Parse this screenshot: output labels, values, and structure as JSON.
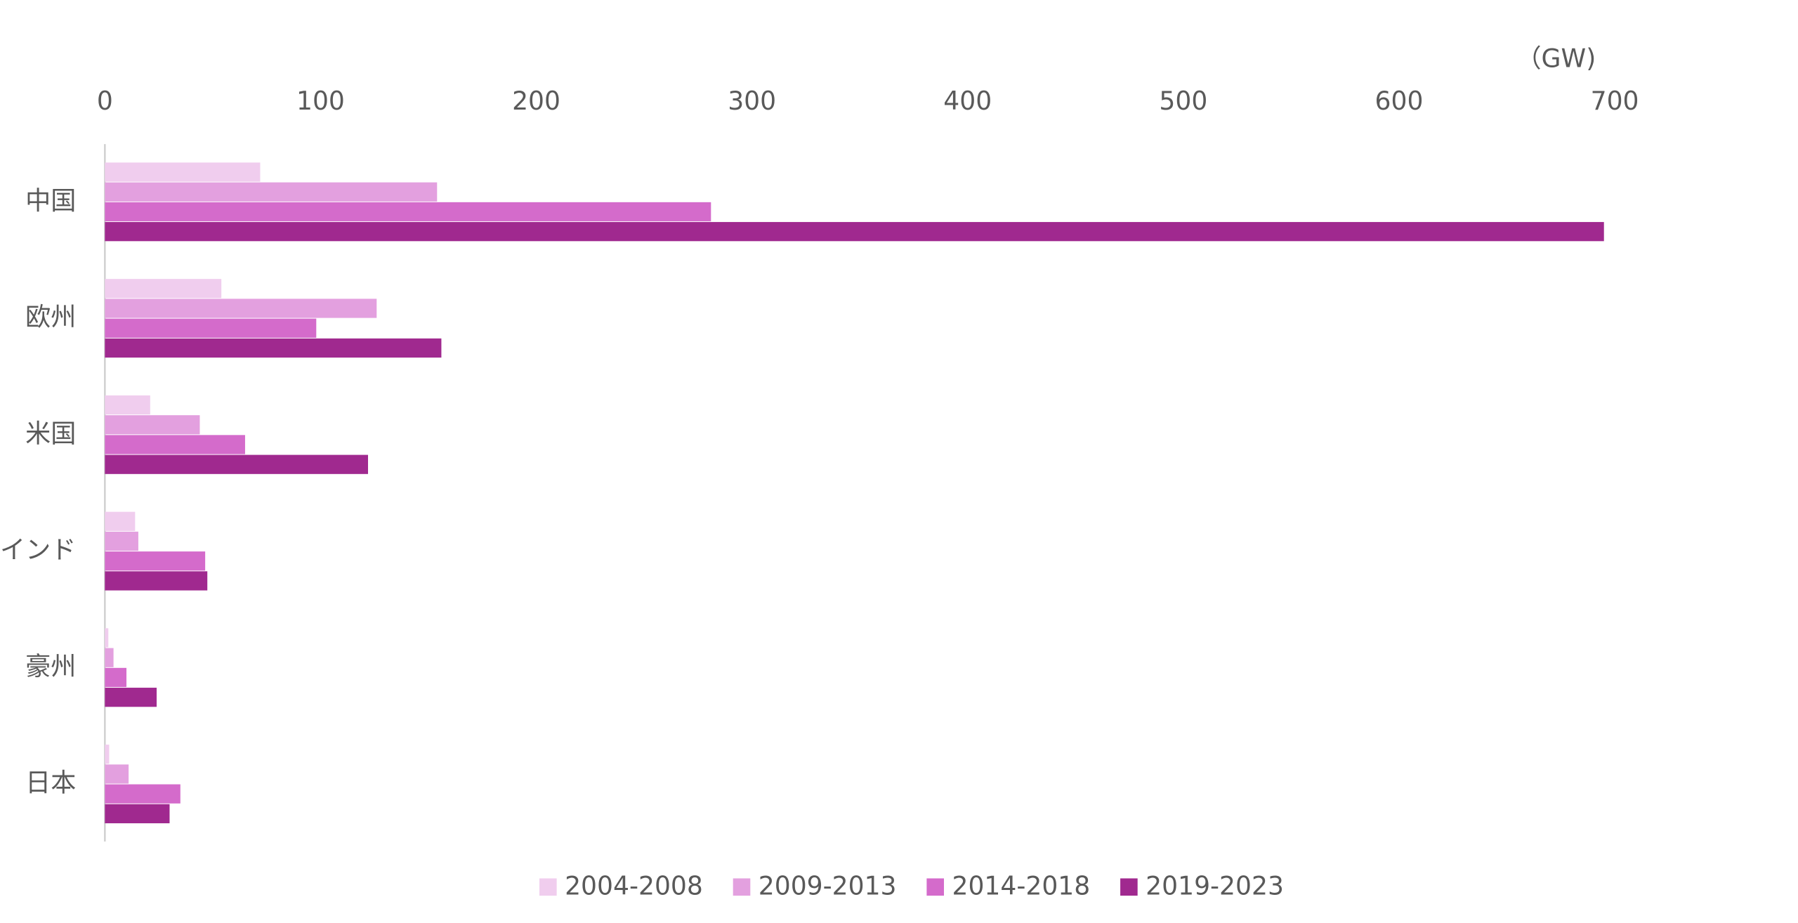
{
  "chart_data": {
    "type": "hbar",
    "unit_label": "（GW)",
    "categories": [
      "中国",
      "欧州",
      "米国",
      "インド",
      "豪州",
      "日本"
    ],
    "series": [
      {
        "name": "2004-2008",
        "color": "#f0cdee",
        "values": [
          72,
          54,
          21,
          14,
          1.6,
          2
        ]
      },
      {
        "name": "2009-2013",
        "color": "#e3a0df",
        "values": [
          154,
          126,
          44,
          15.5,
          4,
          11
        ]
      },
      {
        "name": "2014-2018",
        "color": "#d46bcb",
        "values": [
          281,
          98,
          65,
          46.5,
          10,
          35
        ]
      },
      {
        "name": "2019-2023",
        "color": "#a0298f",
        "values": [
          695,
          156,
          122,
          47.5,
          24,
          30
        ]
      }
    ],
    "xlim": [
      0,
      700
    ],
    "xticks": [
      0,
      100,
      200,
      300,
      400,
      500,
      600,
      700
    ],
    "grid": false,
    "legend": "bottom"
  }
}
